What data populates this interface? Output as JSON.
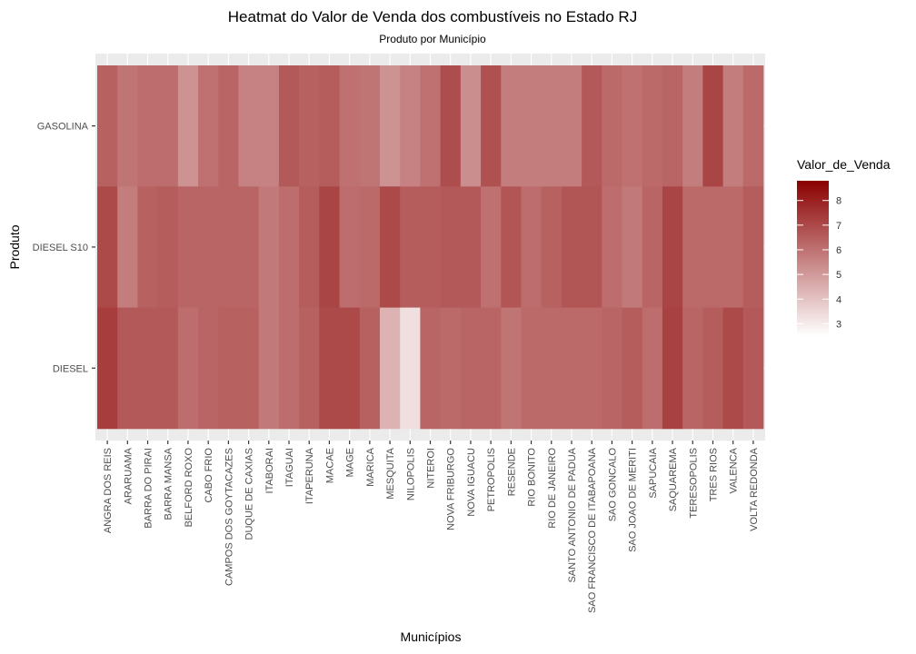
{
  "chart_data": {
    "type": "heatmap",
    "title": "Heatmat do Valor de Venda dos combustíveis no Estado RJ",
    "subtitle": "Produto por Município",
    "xlabel": "Municípios",
    "ylabel": "Produto",
    "x": [
      "ANGRA DOS REIS",
      "ARARUAMA",
      "BARRA DO PIRAI",
      "BARRA MANSA",
      "BELFORD ROXO",
      "CABO FRIO",
      "CAMPOS DOS GOYTACAZES",
      "DUQUE DE CAXIAS",
      "ITABORAI",
      "ITAGUAI",
      "ITAPERUNA",
      "MACAE",
      "MAGE",
      "MARICA",
      "MESQUITA",
      "NILOPOLIS",
      "NITEROI",
      "NOVA FRIBURGO",
      "NOVA IGUACU",
      "PETROPOLIS",
      "RESENDE",
      "RIO BONITO",
      "RIO DE JANEIRO",
      "SANTO ANTONIO DE PADUA",
      "SAO FRANCISCO DE ITABAPOANA",
      "SAO GONCALO",
      "SAO JOAO DE MERITI",
      "SAPUCAIA",
      "SAQUAREMA",
      "TERESOPOLIS",
      "TRES RIOS",
      "VALENCA",
      "VOLTA REDONDA"
    ],
    "y": [
      "GASOLINA",
      "DIESEL S10",
      "DIESEL"
    ],
    "values": [
      [
        6.4,
        5.9,
        6.1,
        6.1,
        5.2,
        6.0,
        6.3,
        5.6,
        5.6,
        6.6,
        6.4,
        6.5,
        6.0,
        5.9,
        5.2,
        5.6,
        6.0,
        6.9,
        5.3,
        6.8,
        5.7,
        5.7,
        5.7,
        5.7,
        6.6,
        6.2,
        6.0,
        6.2,
        6.3,
        5.7,
        7.1,
        5.7,
        6.2
      ],
      [
        7.0,
        5.7,
        6.4,
        6.5,
        6.3,
        6.3,
        6.3,
        6.3,
        5.8,
        6.1,
        6.5,
        7.1,
        6.1,
        6.2,
        7.0,
        6.5,
        6.5,
        6.6,
        6.6,
        6.0,
        6.7,
        6.1,
        6.4,
        6.7,
        6.7,
        6.1,
        5.8,
        6.3,
        7.1,
        6.2,
        6.2,
        6.2,
        6.5
      ],
      [
        7.3,
        6.6,
        6.6,
        6.6,
        6.1,
        6.3,
        6.4,
        6.4,
        5.8,
        6.1,
        6.4,
        7.0,
        7.0,
        6.4,
        4.4,
        3.3,
        6.3,
        6.2,
        6.3,
        6.3,
        5.9,
        6.2,
        6.2,
        6.2,
        6.2,
        6.3,
        6.5,
        6.1,
        7.2,
        6.3,
        6.5,
        7.0,
        6.6
      ]
    ],
    "legend": {
      "title": "Valor_de_Venda",
      "position": "right",
      "ticks": [
        3,
        4,
        5,
        6,
        7,
        8
      ],
      "low_color": "#ffffff",
      "high_color": "#8b0000",
      "min": 2.5,
      "max": 8.8
    },
    "colors": {
      "panel_bg": "#ebebeb",
      "grid": "#ffffff"
    }
  }
}
